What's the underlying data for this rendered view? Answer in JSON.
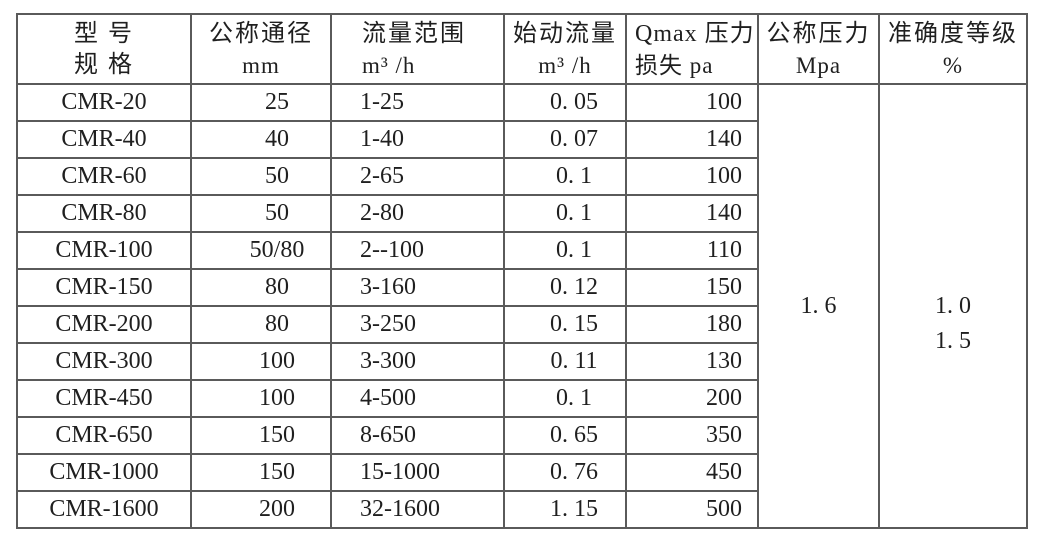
{
  "table": {
    "border_color": "#5a5a5a",
    "text_color": "#1f1f1f",
    "background_color": "#ffffff",
    "columns": [
      {
        "id": "model_spec",
        "line1": "型 号",
        "line2": "规 格"
      },
      {
        "id": "nominal_diameter",
        "line1": "公称通径",
        "line2": "mm"
      },
      {
        "id": "flow_range",
        "line1": "流量范围",
        "line2": "m³ /h"
      },
      {
        "id": "starting_flow",
        "line1": "始动流量",
        "line2": "m³ /h"
      },
      {
        "id": "qmax_pressure_loss",
        "line1": "Qmax 压力",
        "line2": "损失 pa"
      },
      {
        "id": "nominal_pressure",
        "line1": "公称压力",
        "line2": "Mpa"
      },
      {
        "id": "accuracy_class",
        "line1": "准确度等级",
        "line2": "%"
      }
    ],
    "rows": [
      [
        "CMR-20",
        "25",
        "1-25",
        "0. 05",
        "100"
      ],
      [
        "CMR-40",
        "40",
        "1-40",
        "0. 07",
        "140"
      ],
      [
        "CMR-60",
        "50",
        "2-65",
        "0. 1",
        "100"
      ],
      [
        "CMR-80",
        "50",
        "2-80",
        "0. 1",
        "140"
      ],
      [
        "CMR-100",
        "50/80",
        "2--100",
        "0. 1",
        "110"
      ],
      [
        "CMR-150",
        "80",
        "3-160",
        "0. 12",
        "150"
      ],
      [
        "CMR-200",
        "80",
        "3-250",
        "0. 15",
        "180"
      ],
      [
        "CMR-300",
        "100",
        "3-300",
        "0. 11",
        "130"
      ],
      [
        "CMR-450",
        "100",
        "4-500",
        "0. 1",
        "200"
      ],
      [
        "CMR-650",
        "150",
        "8-650",
        "0. 65",
        "350"
      ],
      [
        "CMR-1000",
        "150",
        "15-1000",
        "0. 76",
        "450"
      ],
      [
        "CMR-1600",
        "200",
        "32-1600",
        "1. 15",
        "500"
      ]
    ],
    "merged": {
      "nominal_pressure": "1. 6",
      "accuracy_lines": [
        "1. 0",
        "1. 5"
      ]
    }
  }
}
